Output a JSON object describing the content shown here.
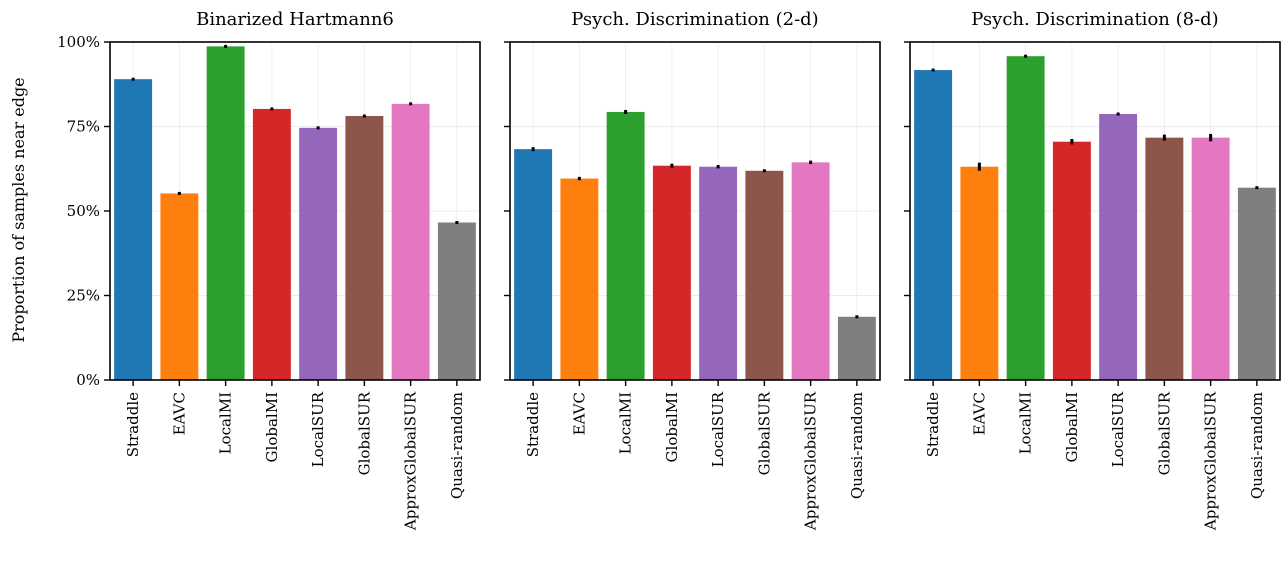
{
  "chart_data": [
    {
      "type": "bar",
      "title": "Binarized Hartmann6",
      "ylabel": "Proportion of samples near edge",
      "ylim": [
        0,
        100
      ],
      "yticks": [
        "0%",
        "25%",
        "50%",
        "75%",
        "100%"
      ],
      "grid": true,
      "categories": [
        "Straddle",
        "EAVC",
        "LocalMI",
        "GlobalMI",
        "LocalSUR",
        "GlobalSUR",
        "ApproxGlobalSUR",
        "Quasi-random"
      ],
      "values": [
        89.0,
        55.2,
        98.7,
        80.2,
        74.6,
        78.1,
        81.7,
        46.6
      ],
      "errors": [
        0.2,
        0.3,
        0.1,
        0.3,
        0.2,
        0.2,
        0.3,
        0.1
      ]
    },
    {
      "type": "bar",
      "title": "Psych. Discrimination (2-d)",
      "ylabel": "",
      "ylim": [
        0,
        100
      ],
      "yticks": [
        "0%",
        "25%",
        "50%",
        "75%",
        "100%"
      ],
      "grid": true,
      "categories": [
        "Straddle",
        "EAVC",
        "LocalMI",
        "GlobalMI",
        "LocalSUR",
        "GlobalSUR",
        "ApproxGlobalSUR",
        "Quasi-random"
      ],
      "values": [
        68.3,
        59.6,
        79.3,
        63.4,
        63.1,
        61.9,
        64.4,
        18.7
      ],
      "errors": [
        0.6,
        0.5,
        0.6,
        0.6,
        0.5,
        0.4,
        0.5,
        0.1
      ]
    },
    {
      "type": "bar",
      "title": "Psych. Discrimination (8-d)",
      "ylabel": "",
      "ylim": [
        0,
        100
      ],
      "yticks": [
        "0%",
        "25%",
        "50%",
        "75%",
        "100%"
      ],
      "grid": true,
      "categories": [
        "Straddle",
        "EAVC",
        "LocalMI",
        "GlobalMI",
        "LocalSUR",
        "GlobalSUR",
        "ApproxGlobalSUR",
        "Quasi-random"
      ],
      "values": [
        91.7,
        63.1,
        95.8,
        70.5,
        78.7,
        71.7,
        71.7,
        56.9
      ],
      "errors": [
        0.2,
        1.2,
        0.2,
        0.8,
        0.3,
        0.9,
        1.1,
        0.1
      ]
    }
  ],
  "colors": [
    "#1f77b4",
    "#ff7f0e",
    "#2ca02c",
    "#d62728",
    "#9467bd",
    "#8c564b",
    "#e377c2",
    "#7f7f7f"
  ]
}
